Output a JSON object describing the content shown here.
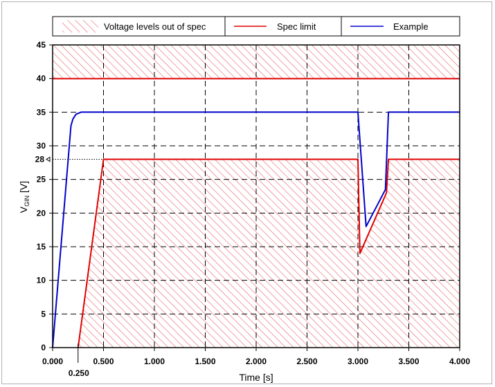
{
  "chart_data": {
    "type": "line",
    "xlabel": "Time [s]",
    "ylabel_main": "V",
    "ylabel_sub": "GIN",
    "ylabel_unit": " [V]",
    "xlim": [
      0,
      4
    ],
    "ylim": [
      0,
      45
    ],
    "grid": true,
    "legend_position": "top",
    "x_ticks": [
      {
        "value": 0,
        "label": "0.000"
      },
      {
        "value": 0.5,
        "label": "0.500"
      },
      {
        "value": 1.0,
        "label": "1.000"
      },
      {
        "value": 1.5,
        "label": "1.500"
      },
      {
        "value": 2.0,
        "label": "2.000"
      },
      {
        "value": 2.5,
        "label": "2.500"
      },
      {
        "value": 3.0,
        "label": "3.000"
      },
      {
        "value": 3.5,
        "label": "3.500"
      },
      {
        "value": 4.0,
        "label": "4.000"
      }
    ],
    "x_extra_tick": {
      "value": 0.25,
      "label": "0.250"
    },
    "y_ticks": [
      {
        "value": 0,
        "label": "0"
      },
      {
        "value": 5,
        "label": "5"
      },
      {
        "value": 10,
        "label": "10"
      },
      {
        "value": 15,
        "label": "15"
      },
      {
        "value": 20,
        "label": "20"
      },
      {
        "value": 25,
        "label": "25"
      },
      {
        "value": 30,
        "label": "30"
      },
      {
        "value": 35,
        "label": "35"
      },
      {
        "value": 40,
        "label": "40"
      },
      {
        "value": 45,
        "label": "45"
      }
    ],
    "y_extra_tick": {
      "value": 28,
      "label": "28"
    },
    "legend": [
      {
        "label": "Voltage levels out of spec",
        "style": "hatch",
        "color": "#e03030"
      },
      {
        "label": "Spec limit",
        "style": "line",
        "color": "#e00000"
      },
      {
        "label": "Example",
        "style": "line",
        "color": "#0000cc"
      }
    ],
    "series": [
      {
        "name": "Spec limit",
        "color": "#e00000",
        "segments": [
          [
            [
              0,
              40
            ],
            [
              4,
              40
            ]
          ],
          [
            [
              0.25,
              0
            ],
            [
              0.5,
              28
            ],
            [
              3.0,
              28
            ],
            [
              3.02,
              14
            ],
            [
              3.28,
              23
            ],
            [
              3.3,
              28
            ],
            [
              4,
              28
            ]
          ]
        ]
      },
      {
        "name": "Example",
        "color": "#0000cc",
        "segments": [
          [
            [
              0,
              0
            ],
            [
              0.18,
              33
            ],
            [
              0.2,
              34
            ],
            [
              0.23,
              34.7
            ],
            [
              0.28,
              35
            ],
            [
              3.0,
              35
            ],
            [
              3.08,
              18
            ],
            [
              3.27,
              23.5
            ],
            [
              3.3,
              35
            ],
            [
              4,
              35
            ]
          ]
        ]
      }
    ],
    "out_of_spec_regions": {
      "upper": [
        [
          0,
          40
        ],
        [
          4,
          40
        ],
        [
          4,
          45
        ],
        [
          0,
          45
        ]
      ],
      "lower": [
        [
          0.25,
          0
        ],
        [
          0.5,
          28
        ],
        [
          3.0,
          28
        ],
        [
          3.02,
          14
        ],
        [
          3.28,
          23
        ],
        [
          3.3,
          28
        ],
        [
          4,
          28
        ],
        [
          4,
          0
        ]
      ]
    }
  }
}
